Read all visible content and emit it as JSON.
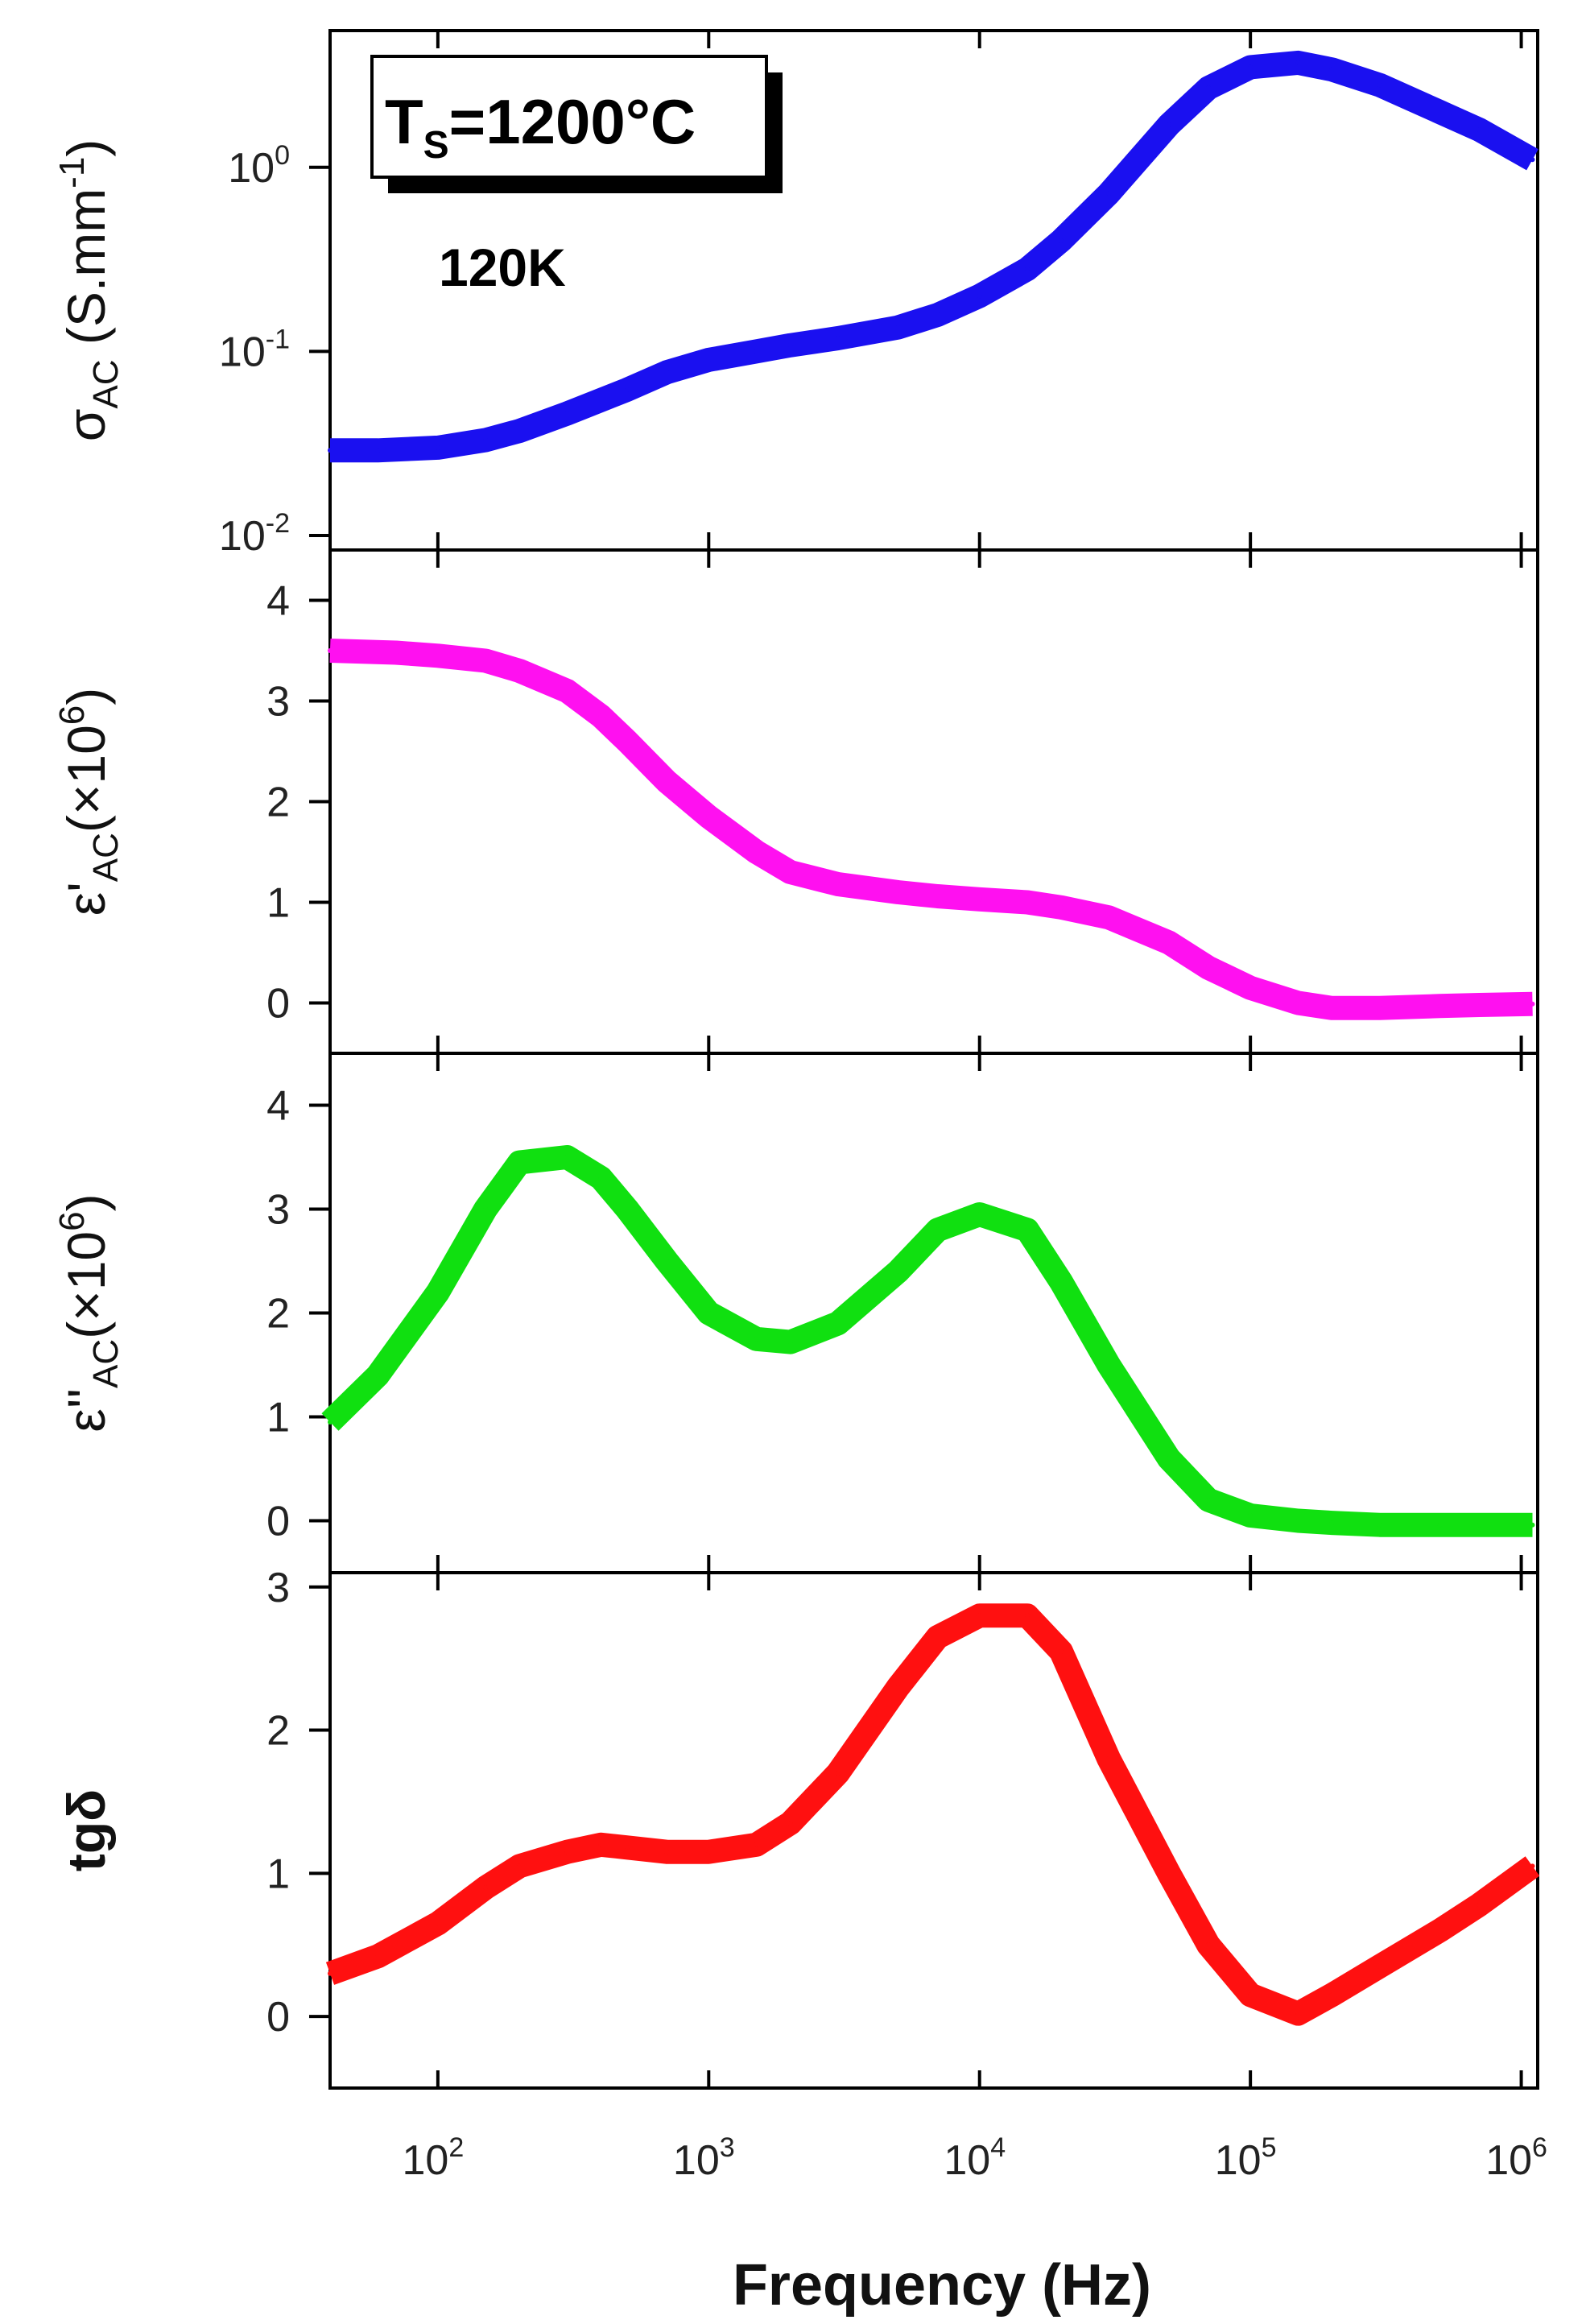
{
  "chart_data": [
    {
      "type": "line",
      "id": "sigma",
      "ylabel": "σAC (S.mm⁻¹)",
      "ylabel_main": "σ",
      "ylabel_sub": "AC",
      "ylabel_rest": " (S.mm",
      "ylabel_sup": "-1",
      "ylabel_close": ")",
      "yscale": "log",
      "ylim": [
        0.01,
        5
      ],
      "yticks": [
        {
          "base": "10",
          "exp": "0",
          "value": 1
        },
        {
          "base": "10",
          "exp": "-1",
          "value": 0.1
        },
        {
          "base": "10",
          "exp": "-2",
          "value": 0.01
        }
      ],
      "color": "#1a10f0",
      "x": [
        40,
        60,
        100,
        150,
        200,
        300,
        500,
        700,
        1000,
        1500,
        2000,
        3000,
        5000,
        7000,
        10000,
        15000,
        20000,
        30000,
        50000,
        70000,
        100000,
        150000,
        200000,
        300000,
        500000,
        700000,
        1100000
      ],
      "values": [
        0.029,
        0.029,
        0.03,
        0.033,
        0.037,
        0.046,
        0.062,
        0.077,
        0.09,
        0.1,
        0.108,
        0.118,
        0.135,
        0.158,
        0.2,
        0.28,
        0.4,
        0.72,
        1.7,
        2.7,
        3.5,
        3.7,
        3.4,
        2.8,
        2.0,
        1.6,
        1.1
      ],
      "annotations": {
        "ts_label": "T",
        "ts_sub": "S",
        "ts_value": "=1200°C",
        "temp": "120K"
      }
    },
    {
      "type": "line",
      "id": "eps_real",
      "ylabel": "ε'AC(×10⁶)",
      "ylabel_main": "ε'",
      "ylabel_sub": "AC",
      "ylabel_rest": "(×10",
      "ylabel_sup": "6",
      "ylabel_close": ")",
      "yscale": "linear",
      "ylim": [
        -0.5,
        4.5
      ],
      "yticks": [
        "0",
        "1",
        "2",
        "3",
        "4"
      ],
      "color": "#ff10f0",
      "x": [
        40,
        70,
        100,
        150,
        200,
        300,
        400,
        500,
        700,
        1000,
        1500,
        2000,
        3000,
        5000,
        7000,
        10000,
        15000,
        20000,
        30000,
        50000,
        70000,
        100000,
        150000,
        200000,
        300000,
        500000,
        700000,
        1100000
      ],
      "values": [
        3.5,
        3.48,
        3.45,
        3.4,
        3.3,
        3.1,
        2.85,
        2.6,
        2.2,
        1.85,
        1.5,
        1.3,
        1.18,
        1.1,
        1.06,
        1.03,
        1.0,
        0.95,
        0.85,
        0.6,
        0.35,
        0.15,
        0.0,
        -0.05,
        -0.05,
        -0.03,
        -0.02,
        -0.01
      ]
    },
    {
      "type": "line",
      "id": "eps_imag",
      "ylabel": "ε''AC(×10⁶)",
      "ylabel_main": "ε''",
      "ylabel_sub": "AC",
      "ylabel_rest": "(×10",
      "ylabel_sup": "6",
      "ylabel_close": ")",
      "yscale": "linear",
      "ylim": [
        -0.5,
        4.5
      ],
      "yticks": [
        "0",
        "1",
        "2",
        "3",
        "4"
      ],
      "color": "#10e010",
      "x": [
        40,
        60,
        100,
        150,
        200,
        300,
        400,
        500,
        700,
        1000,
        1500,
        2000,
        3000,
        5000,
        7000,
        10000,
        15000,
        20000,
        30000,
        50000,
        70000,
        100000,
        150000,
        200000,
        300000,
        500000,
        700000,
        1100000
      ],
      "values": [
        0.95,
        1.4,
        2.2,
        3.0,
        3.45,
        3.5,
        3.3,
        3.0,
        2.5,
        2.0,
        1.75,
        1.72,
        1.9,
        2.4,
        2.8,
        2.95,
        2.8,
        2.3,
        1.5,
        0.6,
        0.2,
        0.05,
        0.0,
        -0.02,
        -0.04,
        -0.04,
        -0.04,
        -0.04
      ]
    },
    {
      "type": "line",
      "id": "tg",
      "ylabel": "tgδ",
      "ylabel_main": "tgδ",
      "ylabel_sub": "",
      "ylabel_rest": "",
      "ylabel_sup": "",
      "ylabel_close": "",
      "yscale": "linear",
      "ylim": [
        -0.5,
        3.1
      ],
      "yticks": [
        "0",
        "1",
        "2",
        "3"
      ],
      "color": "#ff1010",
      "x": [
        40,
        60,
        100,
        150,
        200,
        300,
        400,
        500,
        700,
        1000,
        1500,
        2000,
        3000,
        5000,
        7000,
        10000,
        15000,
        20000,
        30000,
        50000,
        70000,
        100000,
        150000,
        200000,
        300000,
        500000,
        700000,
        1100000
      ],
      "values": [
        0.3,
        0.42,
        0.65,
        0.9,
        1.05,
        1.15,
        1.2,
        1.18,
        1.15,
        1.15,
        1.2,
        1.35,
        1.7,
        2.3,
        2.65,
        2.8,
        2.8,
        2.55,
        1.8,
        1.0,
        0.5,
        0.15,
        0.02,
        0.15,
        0.35,
        0.6,
        0.78,
        1.05
      ]
    }
  ],
  "x_axis": {
    "label": "Frequency (Hz)",
    "scale": "log",
    "xlim": [
      40,
      1150000
    ],
    "ticks": [
      {
        "base": "10",
        "exp": "2",
        "value": 100
      },
      {
        "base": "10",
        "exp": "3",
        "value": 1000
      },
      {
        "base": "10",
        "exp": "4",
        "value": 10000
      },
      {
        "base": "10",
        "exp": "5",
        "value": 100000
      },
      {
        "base": "10",
        "exp": "6",
        "value": 1000000
      }
    ]
  }
}
